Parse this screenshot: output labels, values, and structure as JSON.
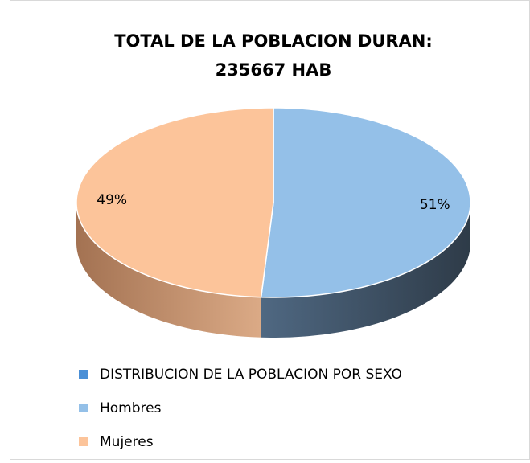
{
  "chart_data": {
    "type": "pie",
    "title": [
      "TOTAL DE LA POBLACION DURAN:",
      "235667  HAB"
    ],
    "series_name": "DISTRIBUCION DE LA POBLACION POR SEXO",
    "series_color": "#4a8fd6",
    "categories": [
      "Hombres",
      "Mujeres"
    ],
    "values": [
      51,
      49
    ],
    "value_labels": [
      "51%",
      "49%"
    ],
    "colors": [
      "#94c0e8",
      "#fcc49a"
    ],
    "side_colors": [
      [
        "#4f6882",
        "#2e3b48"
      ],
      [
        "#dbaa86",
        "#a37252"
      ]
    ],
    "legend": "bottom"
  }
}
